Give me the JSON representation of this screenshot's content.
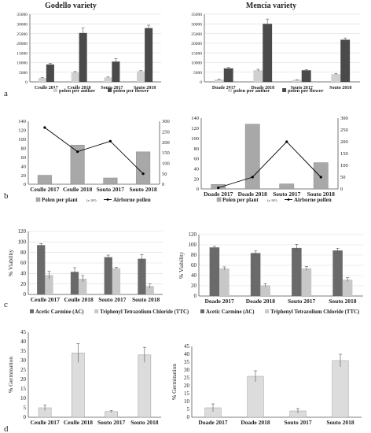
{
  "panel_labels": {
    "a": "a",
    "b": "b",
    "c": "c",
    "d": "d"
  },
  "column_titles": {
    "left": "Godello variety",
    "right": "Mencía variety"
  },
  "colors": {
    "light_bar": "#d0d0d0",
    "dark_bar": "#4a4a4a",
    "gray_bar": "#a8a8a8",
    "line": "#000000",
    "axis": "#555555",
    "grid": "#dcdcdc"
  },
  "chart_data": [
    {
      "id": "a-left",
      "type": "bar",
      "title": "Godello variety",
      "categories": [
        "Ceulle 2017",
        "Ceulle 2018",
        "Souto 2017",
        "Souto 2018"
      ],
      "series": [
        {
          "name": "polen per anther",
          "values": [
            2000,
            5000,
            2300,
            5500
          ],
          "errors": [
            150,
            350,
            250,
            300
          ],
          "color": "#d0d0d0"
        },
        {
          "name": "polen per flower",
          "values": [
            9000,
            25300,
            10500,
            27800
          ],
          "errors": [
            500,
            2500,
            1500,
            1500
          ],
          "color": "#4a4a4a"
        }
      ],
      "ylim": [
        0,
        35000
      ],
      "yticks": [
        "0",
        "5000",
        "10000",
        "15000",
        "20000",
        "25000",
        "30000",
        "35000"
      ],
      "legend": [
        "polen per anther",
        "polen per flower"
      ],
      "legend_position": "bottom",
      "grid": true
    },
    {
      "id": "a-right",
      "type": "bar",
      "title": "Mencía variety",
      "categories": [
        "Doade 2017",
        "Doade 2018",
        "Souto  2017",
        "Souto  2018"
      ],
      "series": [
        {
          "name": "polen per anther",
          "values": [
            1200,
            6000,
            1000,
            4000
          ],
          "errors": [
            200,
            500,
            150,
            300
          ],
          "color": "#d0d0d0"
        },
        {
          "name": "polen per flower",
          "values": [
            7000,
            30000,
            6000,
            21800
          ],
          "errors": [
            500,
            2500,
            400,
            900
          ],
          "color": "#4a4a4a"
        }
      ],
      "ylim": [
        0,
        35000
      ],
      "yticks": [
        "0",
        "5000",
        "10000",
        "15000",
        "20000",
        "25000",
        "30000",
        "35000"
      ],
      "legend": [
        "polen per anther",
        "polen per flower"
      ],
      "legend_position": "bottom",
      "grid": true
    },
    {
      "id": "b-left",
      "type": "bar",
      "categories": [
        "Ceulle 2017",
        "Ceulle 2018",
        "Souto 2017",
        "Souto 2018"
      ],
      "bar_series": {
        "name": "Polen per plant",
        "values": [
          20,
          87,
          14,
          72
        ],
        "color": "#a8a8a8"
      },
      "line_series": {
        "name": "Airborne pollen",
        "values": [
          270,
          155,
          205,
          50
        ],
        "color": "#000000"
      },
      "ylim_left": [
        0,
        140
      ],
      "yticks_left": [
        "0",
        "20",
        "40",
        "60",
        "80",
        "100",
        "120",
        "140"
      ],
      "ylim_right": [
        0,
        300
      ],
      "yticks_right": [
        "0",
        "50",
        "100",
        "150",
        "200",
        "250",
        "300"
      ],
      "legend": {
        "bar": "Polen per plant",
        "unit": "(x 10⁶)",
        "line": "Airborne pollen"
      },
      "legend_position": "bottom",
      "grid": false
    },
    {
      "id": "b-right",
      "type": "bar",
      "categories": [
        "Doade 2017",
        "Doade 2018",
        "Souto 2017",
        "Souto 2018"
      ],
      "bar_series": {
        "name": "Polen per plant",
        "values": [
          9,
          128,
          10,
          52
        ],
        "color": "#a8a8a8"
      },
      "line_series": {
        "name": "Airborne pollen",
        "values": [
          5,
          50,
          200,
          50
        ],
        "color": "#000000"
      },
      "ylim_left": [
        0,
        140
      ],
      "yticks_left": [
        "0",
        "20",
        "40",
        "60",
        "80",
        "100",
        "120",
        "140"
      ],
      "ylim_right": [
        0,
        300
      ],
      "yticks_right": [
        "0",
        "50",
        "100",
        "150",
        "200",
        "250",
        "300"
      ],
      "legend": {
        "bar": "Polen per plant",
        "unit": "(x 10⁶)",
        "line": "Airborne pollen"
      },
      "legend_position": "bottom",
      "grid": false
    },
    {
      "id": "c-left",
      "type": "bar",
      "categories": [
        "Ceulle 2017",
        "Ceulle 2018",
        "Souto 2017",
        "Souto 2018"
      ],
      "series": [
        {
          "name": "Acetic Carmine (AC)",
          "values": [
            94,
            43,
            71,
            68
          ],
          "errors": [
            3,
            8,
            4,
            8
          ],
          "color": "#6a6a6a"
        },
        {
          "name": "Triphenyl Tetrazolium Chloride (TTC)",
          "values": [
            37,
            30,
            50,
            16
          ],
          "errors": [
            7,
            6,
            2,
            4
          ],
          "color": "#c8c8c8"
        }
      ],
      "ylim": [
        0,
        120
      ],
      "yticks": [
        "0",
        "20",
        "40",
        "60",
        "80",
        "100",
        "120"
      ],
      "ylabel": "% Viability",
      "legend": [
        "Acetic Carmine (AC)",
        "Triphenyl Tetrazolium Chloride (TTC)"
      ],
      "legend_position": "bottom",
      "grid": true
    },
    {
      "id": "c-right",
      "type": "bar",
      "categories": [
        "Doade 2017",
        "Doade 2018",
        "Souto  2017",
        "Souto  2018"
      ],
      "series": [
        {
          "name": "Acetic Carmine (AC)",
          "values": [
            95,
            84,
            94,
            89
          ],
          "errors": [
            2,
            4,
            7,
            4
          ],
          "color": "#6a6a6a"
        },
        {
          "name": "Triphenyl Tetrazolium Chloride (TTC)",
          "values": [
            54,
            21,
            54,
            32
          ],
          "errors": [
            3,
            3,
            4,
            4
          ],
          "color": "#c8c8c8"
        }
      ],
      "ylim": [
        0,
        120
      ],
      "yticks": [
        "0",
        "20",
        "40",
        "60",
        "80",
        "100",
        "120"
      ],
      "ylabel": "% Viability",
      "legend": [
        "Acetic Carmine (AC)",
        "Triphenyl Tetrazolium Chloride (TTC)"
      ],
      "legend_position": "bottom",
      "grid": true
    },
    {
      "id": "d-left",
      "type": "bar",
      "categories": [
        "Ceulle 2017",
        "Ceulle 2018",
        "Souto  2017",
        "Souto  2018"
      ],
      "series": [
        {
          "values": [
            5,
            34,
            3,
            33
          ],
          "errors": [
            1.5,
            5,
            0.5,
            4
          ],
          "color": "#dcdcdc"
        }
      ],
      "ylim": [
        0,
        45
      ],
      "yticks": [
        "0",
        "5",
        "10",
        "15",
        "20",
        "25",
        "30",
        "35",
        "40",
        "45"
      ],
      "ylabel": "% Germination",
      "grid": false
    },
    {
      "id": "d-right",
      "type": "bar",
      "categories": [
        "Doade 2017",
        "Doade 2018",
        "Souto  2017",
        "Souto  2018"
      ],
      "series": [
        {
          "values": [
            6,
            26,
            4,
            36
          ],
          "errors": [
            2.5,
            3.5,
            1.5,
            4
          ],
          "color": "#dcdcdc"
        }
      ],
      "ylim": [
        0,
        45
      ],
      "yticks": [
        "0",
        "5",
        "10",
        "15",
        "20",
        "25",
        "30",
        "35",
        "40",
        "45"
      ],
      "ylabel": "% Germination",
      "grid": false
    }
  ]
}
